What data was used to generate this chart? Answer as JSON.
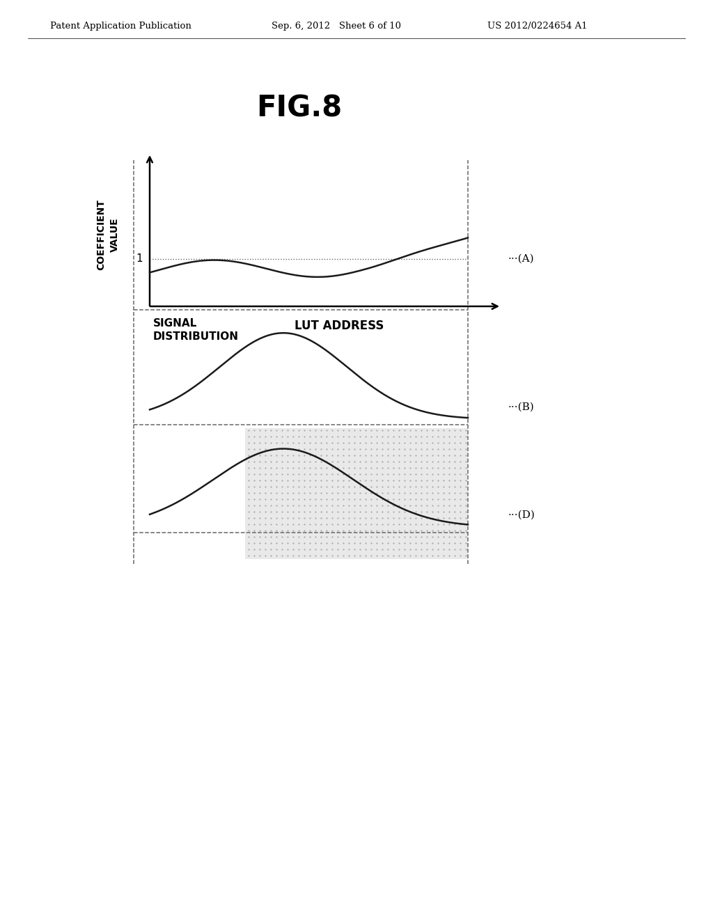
{
  "title": "FIG.8",
  "header_left": "Patent Application Publication",
  "header_center": "Sep. 6, 2012   Sheet 6 of 10",
  "header_right": "US 2012/0224654 A1",
  "ylabel": "COEFFICIENT\nVALUE",
  "xlabel": "LUT ADDRESS",
  "label_A": "···(A)",
  "label_B": "···(B)",
  "label_D": "···(D)",
  "signal_dist_label": "SIGNAL\nDISTRIBUTION",
  "bg_color": "#ffffff",
  "line_color": "#1a1a1a",
  "dash_color": "#666666",
  "shade_color": "#d0d0d0"
}
